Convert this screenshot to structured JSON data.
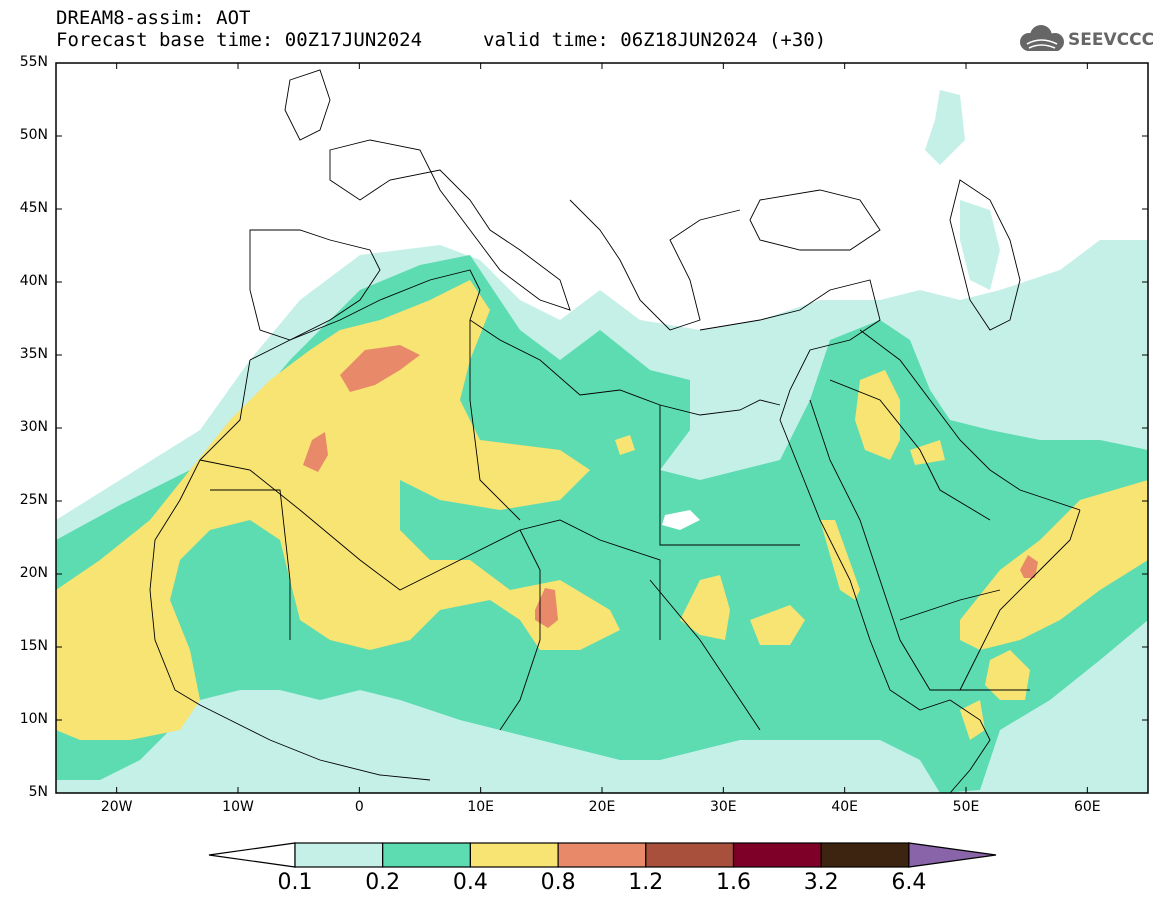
{
  "header": {
    "title_line1": "DREAM8-assim: AOT",
    "title_line2": "Forecast base time: 00Z17JUN2024",
    "valid_time": "valid time: 06Z18JUN2024 (+30)",
    "logo_text": "SEEVCCC"
  },
  "axes": {
    "lat_labels": [
      "55N",
      "50N",
      "45N",
      "40N",
      "35N",
      "30N",
      "25N",
      "20N",
      "15N",
      "10N",
      "5N"
    ],
    "lat_values": [
      55,
      50,
      45,
      40,
      35,
      30,
      25,
      20,
      15,
      10,
      5
    ],
    "lon_labels": [
      "20W",
      "10W",
      "0",
      "10E",
      "20E",
      "30E",
      "40E",
      "50E",
      "60E"
    ],
    "lon_values": [
      -20,
      -10,
      0,
      10,
      20,
      30,
      40,
      50,
      60
    ],
    "lon_range": [
      -25,
      65
    ],
    "lat_range": [
      5,
      55
    ]
  },
  "colorbar": {
    "labels": [
      "0.1",
      "0.2",
      "0.4",
      "0.8",
      "1.2",
      "1.6",
      "3.2",
      "6.4"
    ],
    "colors": [
      "#ffffff",
      "#c4f0e8",
      "#5cdcb0",
      "#f8e473",
      "#e8896a",
      "#a8503c",
      "#7e0028",
      "#3c2410",
      "#8a64a8"
    ]
  },
  "colors": {
    "sea_white": "#ffffff",
    "border": "#000000"
  }
}
